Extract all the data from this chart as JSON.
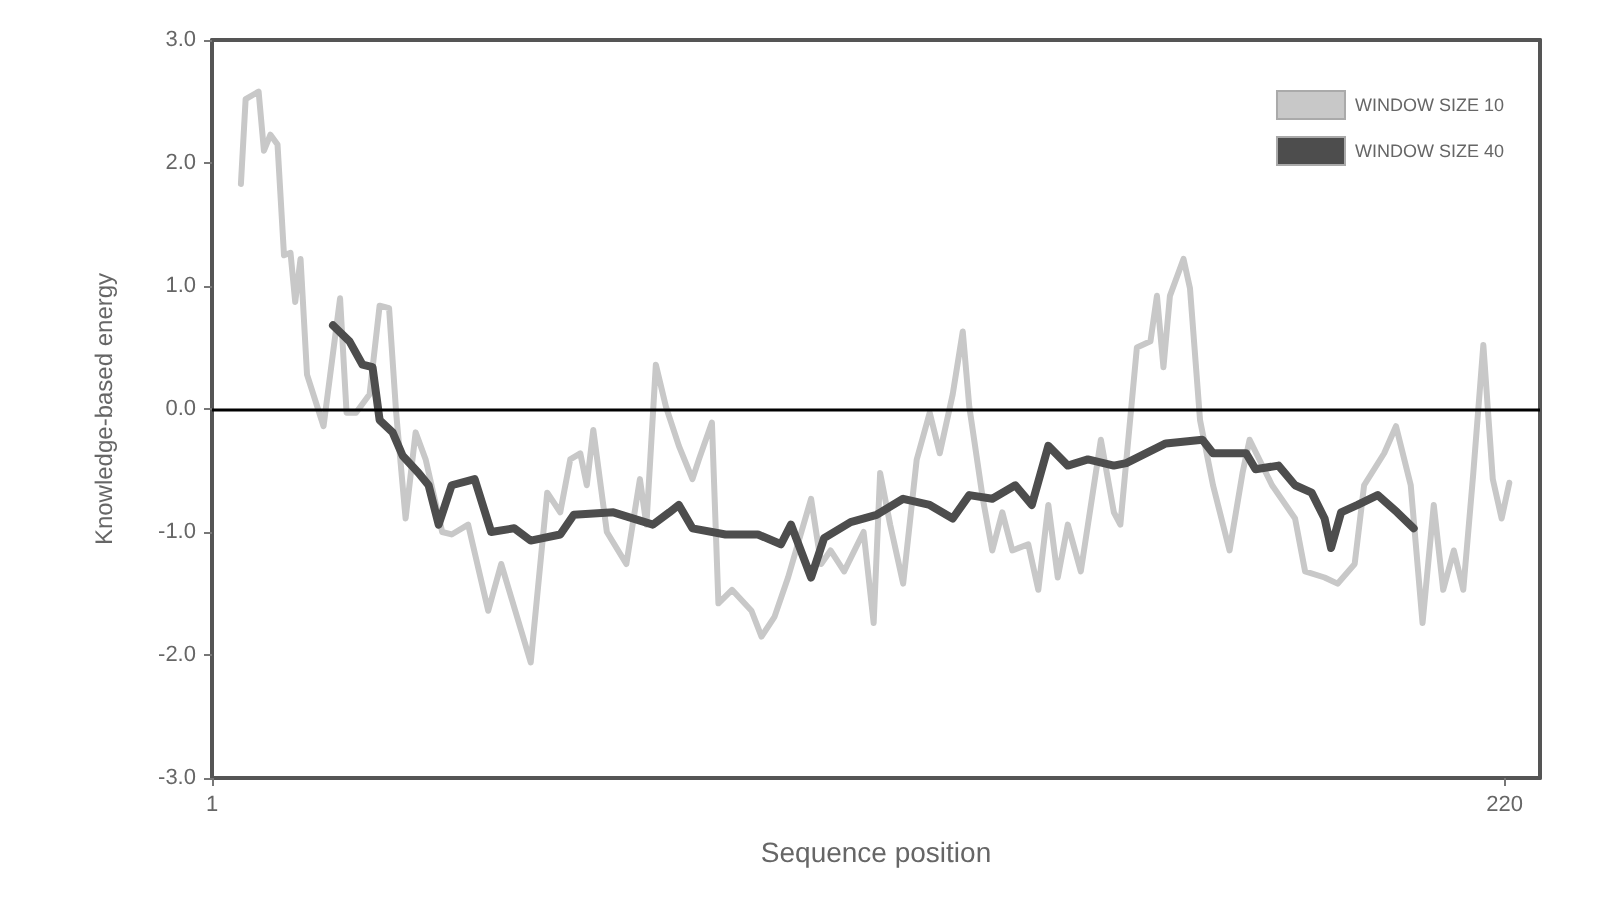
{
  "chart_data": {
    "type": "line",
    "xlabel": "Sequence position",
    "ylabel": "Knowledge-based energy",
    "xlim": [
      1,
      226
    ],
    "xticks": [
      1,
      220
    ],
    "ylim": [
      -3,
      3
    ],
    "yticks": [
      {
        "value": -3,
        "label": "-3.0"
      },
      {
        "value": -2,
        "label": "-2.0"
      },
      {
        "value": -1,
        "label": "-1.0"
      },
      {
        "value": 0,
        "label": "0.0"
      },
      {
        "value": 1,
        "label": "1.0"
      },
      {
        "value": 2,
        "label": "2.0"
      },
      {
        "value": 3,
        "label": "3.0"
      }
    ],
    "grid": false,
    "legend": "top right",
    "marker": "none",
    "line_style": "solid",
    "ref_lines": [
      {
        "axis": "y",
        "value": 0,
        "label": null,
        "color": "#000000"
      }
    ],
    "series": [
      {
        "name": "WINDOW SIZE 10",
        "color": "#c8c8c8",
        "x": [
          5.9,
          6.7,
          8.9,
          9.8,
          10.9,
          12.1,
          13.2,
          14.3,
          15.1,
          16.0,
          17.1,
          19.9,
          22.7,
          23.8,
          25.4,
          27.7,
          29.4,
          31.0,
          32.2,
          33.8,
          35.5,
          37.2,
          40.0,
          41.6,
          44.4,
          47.8,
          50.0,
          55.0,
          57.8,
          60.0,
          61.7,
          63.4,
          64.5,
          65.6,
          67.9,
          71.2,
          73.5,
          74.6,
          76.2,
          77.9,
          80.1,
          82.4,
          83.5,
          85.7,
          86.8,
          89.1,
          92.4,
          94.1,
          96.3,
          98.6,
          102.5,
          104.2,
          105.8,
          108.1,
          111.4,
          113.1,
          114.2,
          115.9,
          118.1,
          120.4,
          122.6,
          124.3,
          126.5,
          128.2,
          129.3,
          131.6,
          133.2,
          134.9,
          136.6,
          139.3,
          141.0,
          142.7,
          144.3,
          146.0,
          148.2,
          151.6,
          153.8,
          154.9,
          157.7,
          160.0,
          161.1,
          162.2,
          163.3,
          165.6,
          166.7,
          168.4,
          170.6,
          173.4,
          175.6,
          176.8,
          180.6,
          184.5,
          186.2,
          189.5,
          191.7,
          194.6,
          196.2,
          199.6,
          201.6,
          204.1,
          206.1,
          208.0,
          209.6,
          211.4,
          213.0,
          214.7,
          216.4,
          218.0,
          219.5,
          220.8
        ],
        "values": [
          1.83,
          2.52,
          2.58,
          2.1,
          2.23,
          2.15,
          1.25,
          1.27,
          0.87,
          1.22,
          0.28,
          -0.14,
          0.9,
          -0.03,
          -0.03,
          0.12,
          0.84,
          0.82,
          -0.03,
          -0.89,
          -0.19,
          -0.41,
          -1.0,
          -1.02,
          -0.94,
          -1.64,
          -1.26,
          -2.06,
          -0.68,
          -0.84,
          -0.41,
          -0.36,
          -0.62,
          -0.17,
          -1.0,
          -1.26,
          -0.57,
          -0.94,
          0.36,
          0.02,
          -0.3,
          -0.57,
          -0.41,
          -0.11,
          -1.58,
          -1.47,
          -1.64,
          -1.85,
          -1.69,
          -1.37,
          -0.73,
          -1.26,
          -1.15,
          -1.32,
          -1.0,
          -1.74,
          -0.52,
          -0.94,
          -1.42,
          -0.41,
          -0.03,
          -0.36,
          0.12,
          0.63,
          0.02,
          -0.73,
          -1.15,
          -0.84,
          -1.15,
          -1.1,
          -1.47,
          -0.78,
          -1.37,
          -0.94,
          -1.32,
          -0.25,
          -0.84,
          -0.94,
          0.5,
          0.55,
          0.92,
          0.34,
          0.92,
          1.22,
          0.98,
          -0.09,
          -0.62,
          -1.15,
          -0.52,
          -0.25,
          -0.62,
          -0.89,
          -1.32,
          -1.37,
          -1.42,
          -1.26,
          -0.62,
          -0.36,
          -0.14,
          -0.62,
          -1.74,
          -0.78,
          -1.47,
          -1.15,
          -1.47,
          -0.52,
          0.52,
          -0.57,
          -0.89,
          -0.6
        ]
      },
      {
        "name": "WINDOW SIZE 40",
        "color": "#4d4d4d",
        "x": [
          21.5,
          24.3,
          26.5,
          28.2,
          29.4,
          31.6,
          33.3,
          36.0,
          37.7,
          39.4,
          41.6,
          45.5,
          48.3,
          52.2,
          55.0,
          60.0,
          62.3,
          69.0,
          75.7,
          78.5,
          80.1,
          82.4,
          88.0,
          93.5,
          97.4,
          99.1,
          102.5,
          104.7,
          109.2,
          113.6,
          118.1,
          122.6,
          126.5,
          129.3,
          133.2,
          137.1,
          139.9,
          142.7,
          146.0,
          149.4,
          153.8,
          155.9,
          162.6,
          168.8,
          170.6,
          176.2,
          177.8,
          181.7,
          184.5,
          187.3,
          189.5,
          190.6,
          192.3,
          195.1,
          198.5,
          201.8,
          204.6
        ],
        "values": [
          0.68,
          0.55,
          0.36,
          0.34,
          -0.09,
          -0.19,
          -0.38,
          -0.52,
          -0.62,
          -0.94,
          -0.62,
          -0.57,
          -1.0,
          -0.97,
          -1.07,
          -1.02,
          -0.86,
          -0.84,
          -0.94,
          -0.84,
          -0.78,
          -0.97,
          -1.02,
          -1.02,
          -1.1,
          -0.94,
          -1.37,
          -1.05,
          -0.92,
          -0.86,
          -0.73,
          -0.78,
          -0.89,
          -0.7,
          -0.73,
          -0.62,
          -0.78,
          -0.3,
          -0.46,
          -0.41,
          -0.46,
          -0.44,
          -0.28,
          -0.25,
          -0.36,
          -0.36,
          -0.49,
          -0.46,
          -0.62,
          -0.68,
          -0.89,
          -1.13,
          -0.84,
          -0.78,
          -0.7,
          -0.84,
          -0.97
        ]
      }
    ]
  }
}
